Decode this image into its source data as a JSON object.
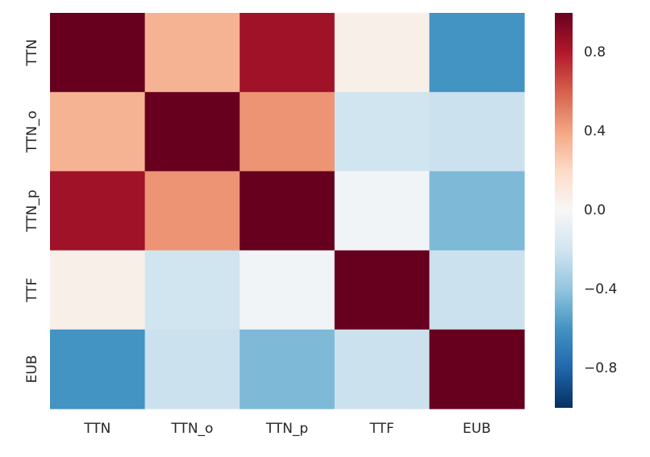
{
  "chart_data": {
    "type": "heatmap",
    "x_categories": [
      "TTN",
      "TTN_o",
      "TTN_p",
      "TTF",
      "EUB"
    ],
    "y_categories": [
      "TTN",
      "TTN_o",
      "TTN_p",
      "TTF",
      "EUB"
    ],
    "values": [
      [
        1.0,
        0.35,
        0.85,
        0.06,
        -0.6
      ],
      [
        0.35,
        1.0,
        0.45,
        -0.2,
        -0.22
      ],
      [
        0.85,
        0.45,
        1.0,
        -0.03,
        -0.45
      ],
      [
        0.06,
        -0.2,
        -0.03,
        1.0,
        -0.22
      ],
      [
        -0.6,
        -0.22,
        -0.45,
        -0.22,
        1.0
      ]
    ],
    "value_range": [
      -1,
      1
    ],
    "colormap": "RdBu_r",
    "colorbar": {
      "ticks": [
        0.8,
        0.4,
        0.0,
        -0.4,
        -0.8
      ],
      "tick_labels": [
        "0.8",
        "0.4",
        "0.0",
        "−0.4",
        "−0.8"
      ]
    },
    "colorbar_stops": [
      "#053061",
      "#2166ac",
      "#4393c3",
      "#92c5de",
      "#d1e5f0",
      "#f7f7f7",
      "#fddbc7",
      "#f4a582",
      "#d6604d",
      "#b2182b",
      "#67001f"
    ],
    "grid": false,
    "title": "",
    "xlabel": "",
    "ylabel": ""
  }
}
